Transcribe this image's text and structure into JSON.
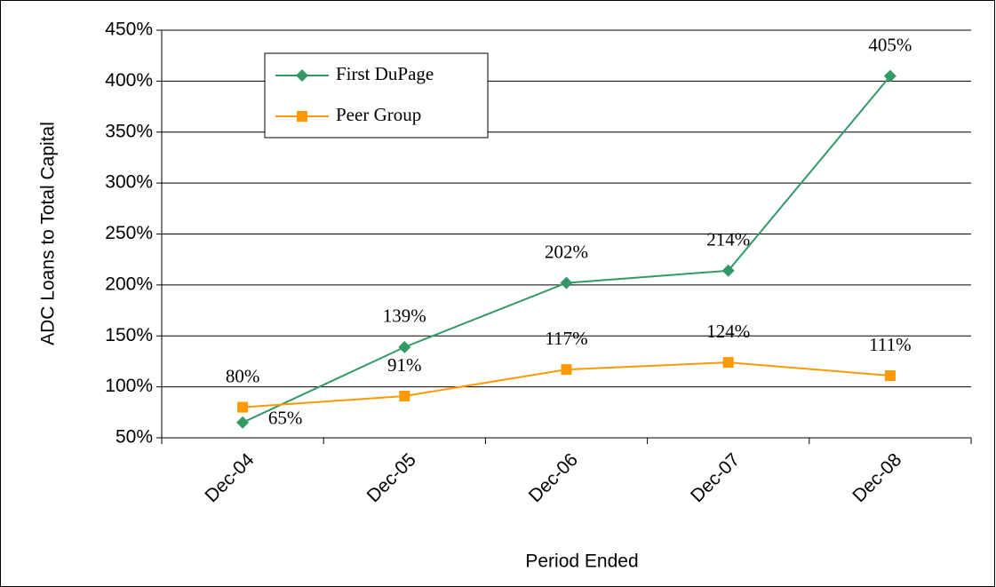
{
  "chart_data": {
    "type": "line",
    "x_label": "Period Ended",
    "y_label": "ADC Loans to Total Capital",
    "categories": [
      "Dec-04",
      "Dec-05",
      "Dec-06",
      "Dec-07",
      "Dec-08"
    ],
    "series": [
      {
        "name": "First DuPage",
        "color": "#339966",
        "marker": "diamond",
        "values": [
          65,
          139,
          202,
          214,
          405
        ],
        "value_labels": [
          "65%",
          "139%",
          "202%",
          "214%",
          "405%"
        ]
      },
      {
        "name": "Peer Group",
        "color": "#ff9900",
        "marker": "square",
        "values": [
          80,
          91,
          117,
          124,
          111
        ],
        "value_labels": [
          "80%",
          "91%",
          "117%",
          "124%",
          "111%"
        ]
      }
    ],
    "ylim": [
      50,
      450
    ],
    "yticks": [
      {
        "value": 50,
        "label": "50%"
      },
      {
        "value": 100,
        "label": "100%"
      },
      {
        "value": 150,
        "label": "150%"
      },
      {
        "value": 200,
        "label": "200%"
      },
      {
        "value": 250,
        "label": "250%"
      },
      {
        "value": 300,
        "label": "300%"
      },
      {
        "value": 350,
        "label": "350%"
      },
      {
        "value": 400,
        "label": "400%"
      },
      {
        "value": 450,
        "label": "450%"
      }
    ],
    "grid": true,
    "legend": "upper left"
  }
}
